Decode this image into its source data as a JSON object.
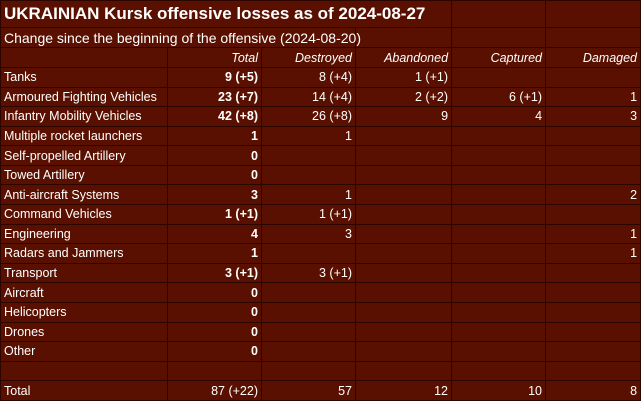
{
  "title": "UKRAINIAN Kursk offensive losses as of 2024-08-27",
  "subtitle": "Change since the beginning of the offensive (2024-08-20)",
  "colors": {
    "background": "#5a1000",
    "grid": "#2b0500",
    "text": "#ffffff"
  },
  "columns": [
    "Total",
    "Destroyed",
    "Abandoned",
    "Captured",
    "Damaged"
  ],
  "rows": [
    {
      "label": "Tanks",
      "values": [
        "9 (+5)",
        "8 (+4)",
        "1 (+1)",
        "",
        ""
      ]
    },
    {
      "label": "Armoured Fighting Vehicles",
      "values": [
        "23 (+7)",
        "14 (+4)",
        "2 (+2)",
        "6 (+1)",
        "1"
      ]
    },
    {
      "label": "Infantry Mobility Vehicles",
      "values": [
        "42 (+8)",
        "26 (+8)",
        "9",
        "4",
        "3"
      ]
    },
    {
      "label": "Multiple rocket launchers",
      "values": [
        "1",
        "1",
        "",
        "",
        ""
      ]
    },
    {
      "label": "Self-propelled Artillery",
      "values": [
        "0",
        "",
        "",
        "",
        ""
      ]
    },
    {
      "label": "Towed Artillery",
      "values": [
        "0",
        "",
        "",
        "",
        ""
      ]
    },
    {
      "label": "Anti-aircraft Systems",
      "values": [
        "3",
        "1",
        "",
        "",
        "2"
      ]
    },
    {
      "label": "Command Vehicles",
      "values": [
        "1 (+1)",
        "1 (+1)",
        "",
        "",
        ""
      ]
    },
    {
      "label": "Engineering",
      "values": [
        "4",
        "3",
        "",
        "",
        "1"
      ]
    },
    {
      "label": "Radars and Jammers",
      "values": [
        "1",
        "",
        "",
        "",
        "1"
      ]
    },
    {
      "label": "Transport",
      "values": [
        "3 (+1)",
        "3 (+1)",
        "",
        "",
        ""
      ]
    },
    {
      "label": "Aircraft",
      "values": [
        "0",
        "",
        "",
        "",
        ""
      ]
    },
    {
      "label": "Helicopters",
      "values": [
        "0",
        "",
        "",
        "",
        ""
      ]
    },
    {
      "label": "Drones",
      "values": [
        "0",
        "",
        "",
        "",
        ""
      ]
    },
    {
      "label": "Other",
      "values": [
        "0",
        "",
        "",
        "",
        ""
      ]
    }
  ],
  "total": {
    "label": "Total",
    "values": [
      "87 (+22)",
      "57",
      "12",
      "10",
      "8"
    ]
  }
}
